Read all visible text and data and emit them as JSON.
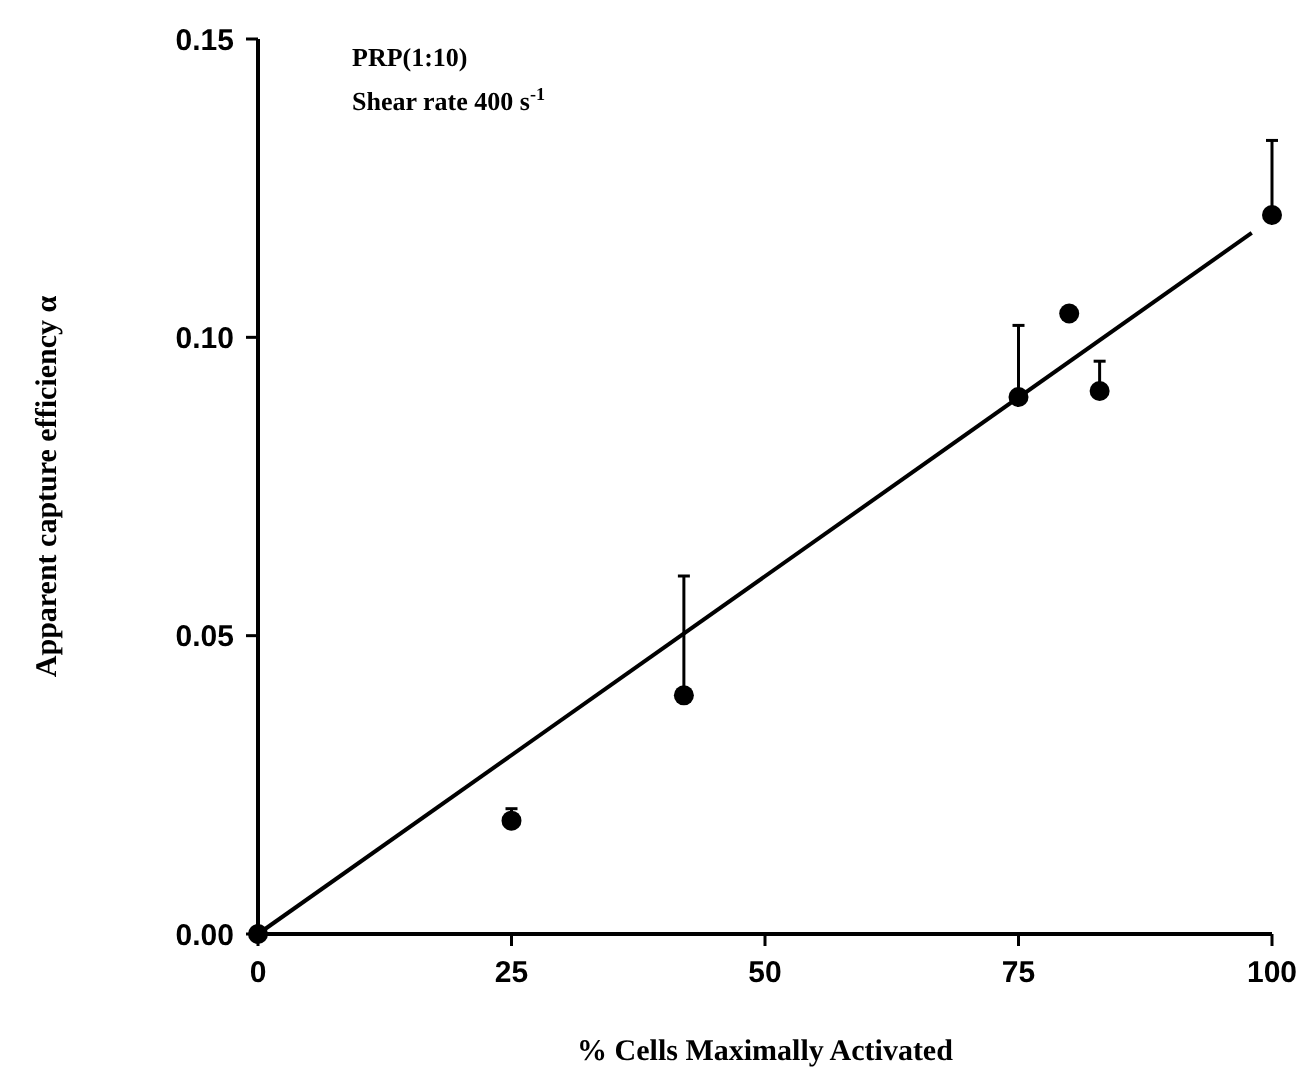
{
  "chart_data": {
    "type": "scatter",
    "xlabel": "% Cells Maximally Activated",
    "ylabel": "Apparent capture efficiency  α",
    "annotations": [
      "PRP(1:10)",
      "Shear rate 400 s$^{-1}$"
    ],
    "xlim": [
      0,
      100
    ],
    "ylim": [
      0,
      0.15
    ],
    "xticks": [
      0,
      25,
      50,
      75,
      100
    ],
    "yticks": [
      {
        "value": 0,
        "label": "0.00"
      },
      {
        "value": 0.05,
        "label": "0.05"
      },
      {
        "value": 0.1,
        "label": "0.10"
      },
      {
        "value": 0.15,
        "label": "0.15"
      }
    ],
    "grid": false,
    "marker": "circle",
    "series": [
      {
        "color": "#000000",
        "x": [
          0,
          25,
          42,
          75,
          80,
          83,
          100
        ],
        "values": [
          0,
          0.019,
          0.04,
          0.09,
          0.104,
          0.091,
          0.1205
        ],
        "errors": [
          null,
          [
            0.019,
            0.021
          ],
          [
            0.04,
            0.06
          ],
          [
            0.09,
            0.102
          ],
          null,
          [
            0.091,
            0.096
          ],
          [
            0.1205,
            0.133
          ]
        ]
      },
      {
        "type": "line",
        "color": "#000000",
        "x": [
          0,
          98
        ],
        "values": [
          0,
          0.1175
        ],
        "line_style": "solid",
        "marker": "none"
      }
    ]
  }
}
